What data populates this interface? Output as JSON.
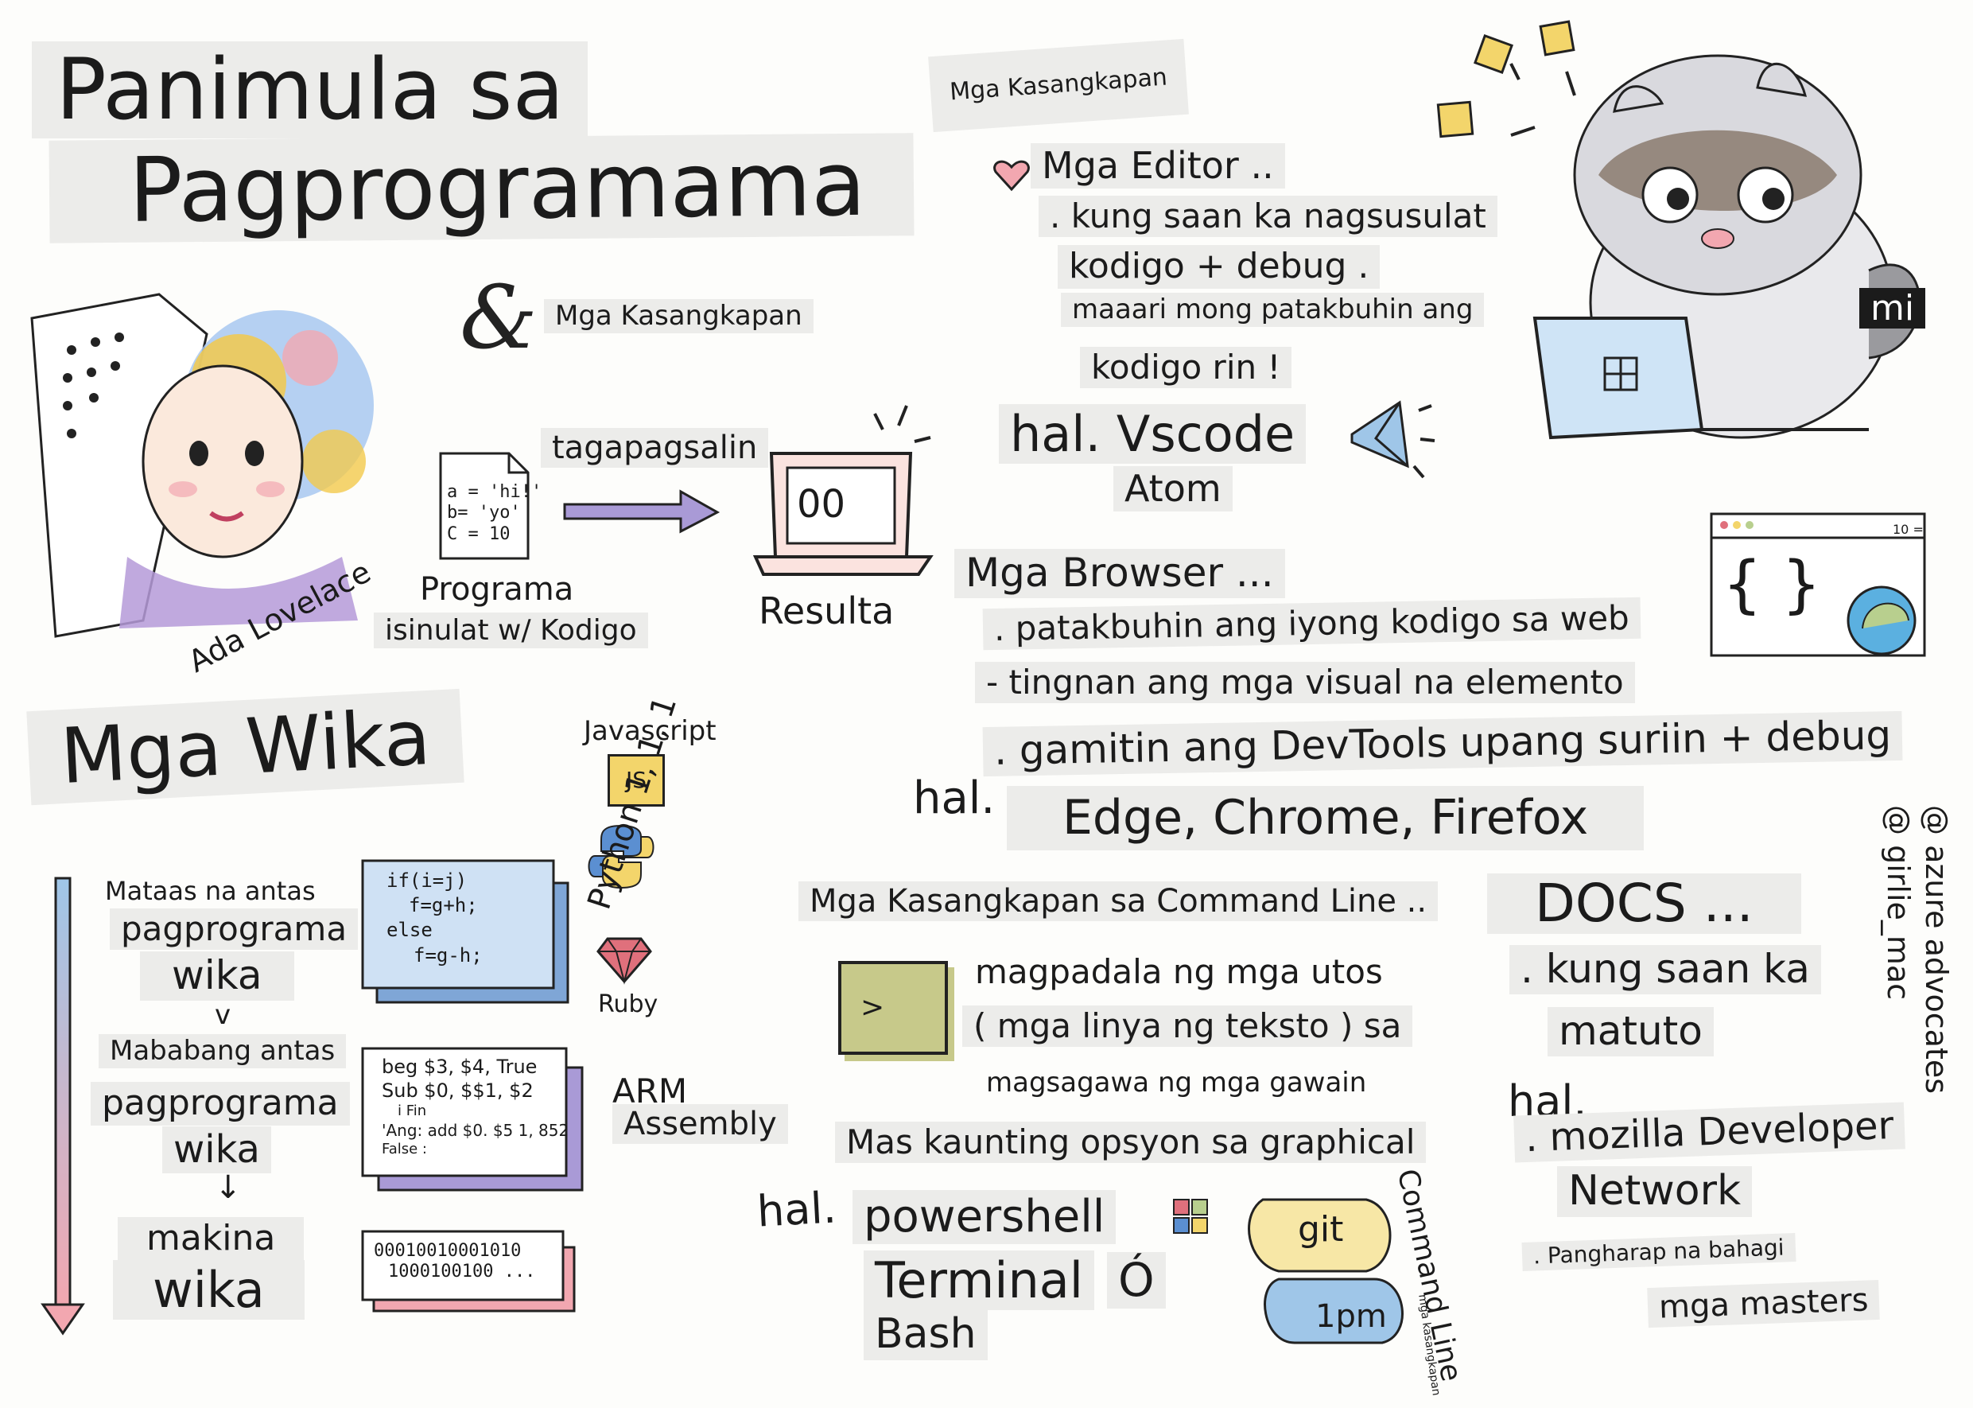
{
  "title": {
    "line1": "Panimula sa",
    "line2": "Pagprogramama"
  },
  "intro": {
    "ampersand": "&",
    "tools": "Mga Kasangkapan",
    "ada_name": "Ada Lovelace",
    "code_lines": [
      "a = 'hi!'",
      "b= 'yo'",
      "C = 10"
    ],
    "translator": "tagapagsalin",
    "program": "Programa",
    "written_with": "isinulat w/ Kodigo",
    "screen_output": "00",
    "result": "Resulta"
  },
  "languages": {
    "title": "Mga Wika",
    "high_level": [
      "Mataas na antas",
      "pagprograma",
      "wika"
    ],
    "vs": "v",
    "low_level": [
      "Mababang antas",
      "pagprograma",
      "wika"
    ],
    "arrow": "↓",
    "machine": [
      "makina",
      "wika"
    ],
    "high_code": [
      "if(i=j)",
      "f=g+h;",
      "else",
      "f=g-h;"
    ],
    "asm_code": [
      "beg $3, $4, True",
      "Sub $0, $$1, $2",
      "i Fin",
      "'Ang: add $0. $5 1, 852",
      "False :"
    ],
    "machine_code": [
      "00010010001010",
      "1000100100 ..."
    ],
    "javascript": "Javascript",
    "js_icon": "JS",
    "python": "Python 1, 1, 1",
    "ruby": "Ruby",
    "arm": [
      "ARM",
      "Assembly"
    ]
  },
  "tools": {
    "header": "Mga Kasangkapan",
    "editors_title": "Mga Editor ..",
    "editors_desc": [
      ". kung saan ka nagsusulat",
      "kodigo + debug .",
      "maaari mong patakbuhin ang",
      "kodigo rin !"
    ],
    "editors_example": "hal. Vscode",
    "editors_example2": "Atom",
    "mascot_tag": "mi",
    "browsers_title": "Mga Browser ...",
    "browsers_desc": [
      ". patakbuhin ang iyong kodigo sa web",
      "- tingnan ang mga visual na elemento",
      ". gamitin ang DevTools upang suriin + debug"
    ],
    "browsers_hal": "hal.",
    "browsers_example": "Edge, Chrome, Firefox",
    "browser_window_num": "10 =",
    "braces": "{ }",
    "cli_title": "Mga Kasangkapan sa Command Line ..",
    "terminal_prompt": ">",
    "cli_desc": [
      "magpadala ng mga utos",
      "( mga linya ng teksto ) sa",
      "magsagawa ng mga gawain"
    ],
    "cli_graphical": "Mas kaunting opsyon sa graphical",
    "cli_hal": "hal.",
    "cli_examples": [
      "powershell",
      "Terminal",
      "Ó",
      "Bash"
    ],
    "git_bubble": "git",
    "time_bubble": "1pm",
    "command_line_vertical": "Command Line",
    "command_line_small": "mga kasangkapan",
    "docs_title": "DOCS ...",
    "docs_desc": [
      ". kung saan ka",
      "matuto"
    ],
    "docs_hal": "hal.",
    "docs_example": [
      ". mozilla Developer",
      "Network"
    ],
    "docs_footer": [
      ". Pangharap na bahagi",
      "mga masters"
    ]
  },
  "credits": [
    "@ azure advocates",
    "@ girlie_mac"
  ],
  "colors": {
    "accent_purple": "#a99ad6",
    "pink": "#f2a7b0",
    "blue": "#9fc6e8",
    "yellow": "#f3d56b",
    "green": "#b8cf8e"
  }
}
